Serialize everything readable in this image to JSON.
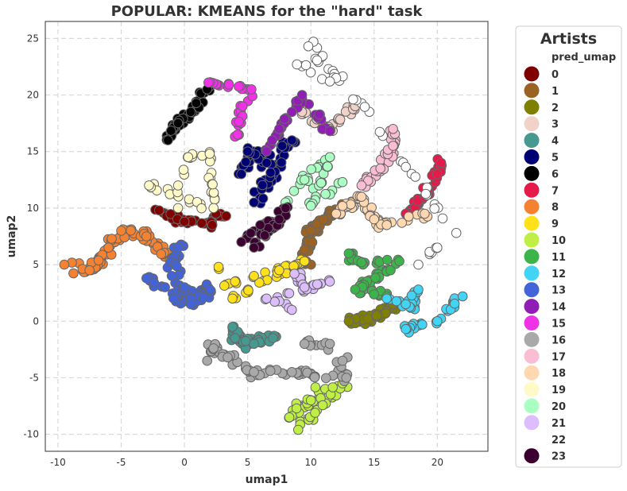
{
  "chart_data": {
    "type": "scatter",
    "title": "POPULAR: KMEANS for the \"hard\" task",
    "xlabel": "umap1",
    "ylabel": "umap2",
    "xlim": [
      -11,
      24
    ],
    "ylim": [
      -11.5,
      26.5
    ],
    "xticks": [
      -10,
      -5,
      0,
      5,
      10,
      15,
      20
    ],
    "yticks": [
      -10,
      -5,
      0,
      5,
      10,
      15,
      20,
      25
    ],
    "grid": true,
    "legend": {
      "title": "Artists",
      "subtitle": "pred_umap",
      "placement": "outside-right"
    },
    "clusters": [
      {
        "name": "0",
        "color": "#800000",
        "path": [
          [
            -2,
            9.8
          ],
          [
            0,
            8.8
          ],
          [
            2.2,
            8.5
          ],
          [
            2.5,
            9.5
          ],
          [
            3.3,
            9.3
          ]
        ],
        "spread": 0.25,
        "n": 40
      },
      {
        "name": "1",
        "color": "#9a6324",
        "path": [
          [
            9.5,
            5.2
          ],
          [
            10.0,
            8.0
          ],
          [
            11.0,
            9.0
          ],
          [
            12.5,
            10.0
          ]
        ],
        "spread": 0.35,
        "n": 55
      },
      {
        "name": "2",
        "color": "#808000",
        "path": [
          [
            13.0,
            0.0
          ],
          [
            14.5,
            0.2
          ],
          [
            15.2,
            0.5
          ],
          [
            16.5,
            1.5
          ]
        ],
        "spread": 0.35,
        "n": 45
      },
      {
        "name": "3",
        "color": "#f0d2c8",
        "path": [
          [
            9.3,
            18.5
          ],
          [
            11.5,
            17.0
          ],
          [
            13.5,
            19.0
          ]
        ],
        "spread": 0.25,
        "n": 30
      },
      {
        "name": "4",
        "color": "#469990",
        "path": [
          [
            3.8,
            -0.5
          ],
          [
            4.0,
            -1.5
          ],
          [
            5.5,
            -2.0
          ],
          [
            7.0,
            -1.5
          ]
        ],
        "spread": 0.35,
        "n": 40
      },
      {
        "name": "5",
        "color": "#000075",
        "path": [
          [
            4.5,
            13.0
          ],
          [
            5.0,
            15.0
          ],
          [
            6.5,
            14.0
          ],
          [
            8.5,
            16.0
          ],
          [
            5.5,
            10.5
          ]
        ],
        "spread": 0.4,
        "n": 65
      },
      {
        "name": "6",
        "color": "#000000",
        "path": [
          [
            -1.3,
            16.0
          ],
          [
            -0.5,
            17.5
          ],
          [
            0.5,
            18.5
          ],
          [
            1.8,
            20.5
          ]
        ],
        "spread": 0.3,
        "n": 45
      },
      {
        "name": "7",
        "color": "#e6194b",
        "path": [
          [
            17.5,
            9.5
          ],
          [
            19.0,
            11.0
          ],
          [
            20.0,
            13.0
          ],
          [
            20.3,
            14.0
          ]
        ],
        "spread": 0.3,
        "n": 40
      },
      {
        "name": "8",
        "color": "#f58231",
        "path": [
          [
            -9.5,
            5.0
          ],
          [
            -7.5,
            4.5
          ],
          [
            -6.0,
            6.5
          ],
          [
            -5.0,
            8.0
          ],
          [
            -3.0,
            7.5
          ],
          [
            -1.0,
            5.5
          ]
        ],
        "spread": 0.45,
        "n": 80
      },
      {
        "name": "9",
        "color": "#ffe119",
        "path": [
          [
            4.0,
            3.5
          ],
          [
            5.5,
            4.0
          ],
          [
            7.5,
            4.5
          ],
          [
            9.5,
            5.3
          ],
          [
            3.8,
            2.0
          ],
          [
            2.7,
            4.8
          ]
        ],
        "spread": 0.25,
        "n": 35
      },
      {
        "name": "10",
        "color": "#bfef45",
        "path": [
          [
            8.3,
            -8.5
          ],
          [
            10.0,
            -7.0
          ],
          [
            12.5,
            -5.5
          ],
          [
            9.0,
            -9.6
          ]
        ],
        "spread": 0.35,
        "n": 45
      },
      {
        "name": "11",
        "color": "#3cb44b",
        "path": [
          [
            13.0,
            6.0
          ],
          [
            14.0,
            5.2
          ],
          [
            17.0,
            5.3
          ],
          [
            13.5,
            2.8
          ],
          [
            16.0,
            2.2
          ]
        ],
        "spread": 0.3,
        "n": 50
      },
      {
        "name": "12",
        "color": "#42d4f4",
        "path": [
          [
            16.0,
            2.0
          ],
          [
            17.5,
            1.5
          ],
          [
            18.5,
            2.8
          ],
          [
            17.5,
            -0.7
          ],
          [
            20.0,
            0.0
          ],
          [
            22.0,
            2.2
          ]
        ],
        "spread": 0.25,
        "n": 45
      },
      {
        "name": "13",
        "color": "#4363d8",
        "path": [
          [
            -0.5,
            6.5
          ],
          [
            -1.0,
            4.0
          ],
          [
            0.0,
            3.0
          ],
          [
            0.5,
            2.0
          ],
          [
            2.0,
            2.8
          ],
          [
            0.5,
            1.5
          ],
          [
            -3.0,
            3.8
          ]
        ],
        "spread": 0.4,
        "n": 70
      },
      {
        "name": "14",
        "color": "#911eb4",
        "path": [
          [
            6.5,
            15.0
          ],
          [
            7.5,
            17.0
          ],
          [
            8.5,
            18.5
          ],
          [
            9.3,
            20.0
          ],
          [
            11.5,
            16.8
          ]
        ],
        "spread": 0.25,
        "n": 35
      },
      {
        "name": "15",
        "color": "#f032e6",
        "path": [
          [
            4.2,
            16.5
          ],
          [
            4.6,
            19.0
          ],
          [
            5.3,
            20.5
          ],
          [
            1.9,
            21.1
          ]
        ],
        "spread": 0.25,
        "n": 30
      },
      {
        "name": "16",
        "color": "#a9a9a9",
        "path": [
          [
            9.5,
            -2.0
          ],
          [
            11.5,
            -2.0
          ],
          [
            12.5,
            -3.5
          ],
          [
            12.8,
            -5.0
          ],
          [
            8.5,
            -4.5
          ],
          [
            5.5,
            -4.5
          ],
          [
            2.3,
            -2.4
          ],
          [
            1.8,
            -3.5
          ]
        ],
        "spread": 0.4,
        "n": 65
      },
      {
        "name": "17",
        "color": "#fabed4",
        "path": [
          [
            14.0,
            12.0
          ],
          [
            15.5,
            13.5
          ],
          [
            16.5,
            15.5
          ],
          [
            16.5,
            17.0
          ]
        ],
        "spread": 0.3,
        "n": 40
      },
      {
        "name": "18",
        "color": "#ffd8b1",
        "path": [
          [
            12.0,
            9.5
          ],
          [
            14.0,
            11.0
          ],
          [
            15.0,
            9.0
          ],
          [
            16.0,
            8.5
          ],
          [
            19.0,
            9.5
          ]
        ],
        "spread": 0.35,
        "n": 50
      },
      {
        "name": "19",
        "color": "#fffac8",
        "path": [
          [
            -0.5,
            10.0
          ],
          [
            -0.5,
            12.0
          ],
          [
            0.3,
            14.5
          ],
          [
            2.0,
            14.8
          ],
          [
            2.3,
            10.0
          ],
          [
            -2.8,
            12.0
          ]
        ],
        "spread": 0.25,
        "n": 35
      },
      {
        "name": "20",
        "color": "#aaffc3",
        "path": [
          [
            8.0,
            10.5
          ],
          [
            9.5,
            12.5
          ],
          [
            11.5,
            14.5
          ],
          [
            10.0,
            10.2
          ],
          [
            12.5,
            12.3
          ]
        ],
        "spread": 0.25,
        "n": 35
      },
      {
        "name": "21",
        "color": "#dcbeff",
        "path": [
          [
            8.7,
            4.2
          ],
          [
            9.5,
            3.0
          ],
          [
            11.5,
            3.5
          ],
          [
            6.5,
            2.0
          ],
          [
            8.5,
            1.0
          ]
        ],
        "spread": 0.25,
        "n": 30
      },
      {
        "name": "22",
        "color": "#ffffff",
        "path": [
          [
            18.5,
            5.0
          ],
          [
            20.0,
            6.5
          ],
          [
            21.5,
            7.8
          ],
          [
            10.2,
            24.7
          ],
          [
            9.8,
            24.3
          ],
          [
            12.0,
            21.5
          ],
          [
            11.5,
            21.2
          ],
          [
            8.9,
            22.7
          ]
        ],
        "spread": 0.25,
        "n": 40
      },
      {
        "name": "23",
        "color": "#3c0030",
        "path": [
          [
            4.5,
            7.0
          ],
          [
            6.0,
            8.5
          ],
          [
            7.5,
            9.0
          ],
          [
            8.0,
            10.0
          ],
          [
            5.5,
            6.5
          ]
        ],
        "spread": 0.35,
        "n": 50
      }
    ]
  }
}
